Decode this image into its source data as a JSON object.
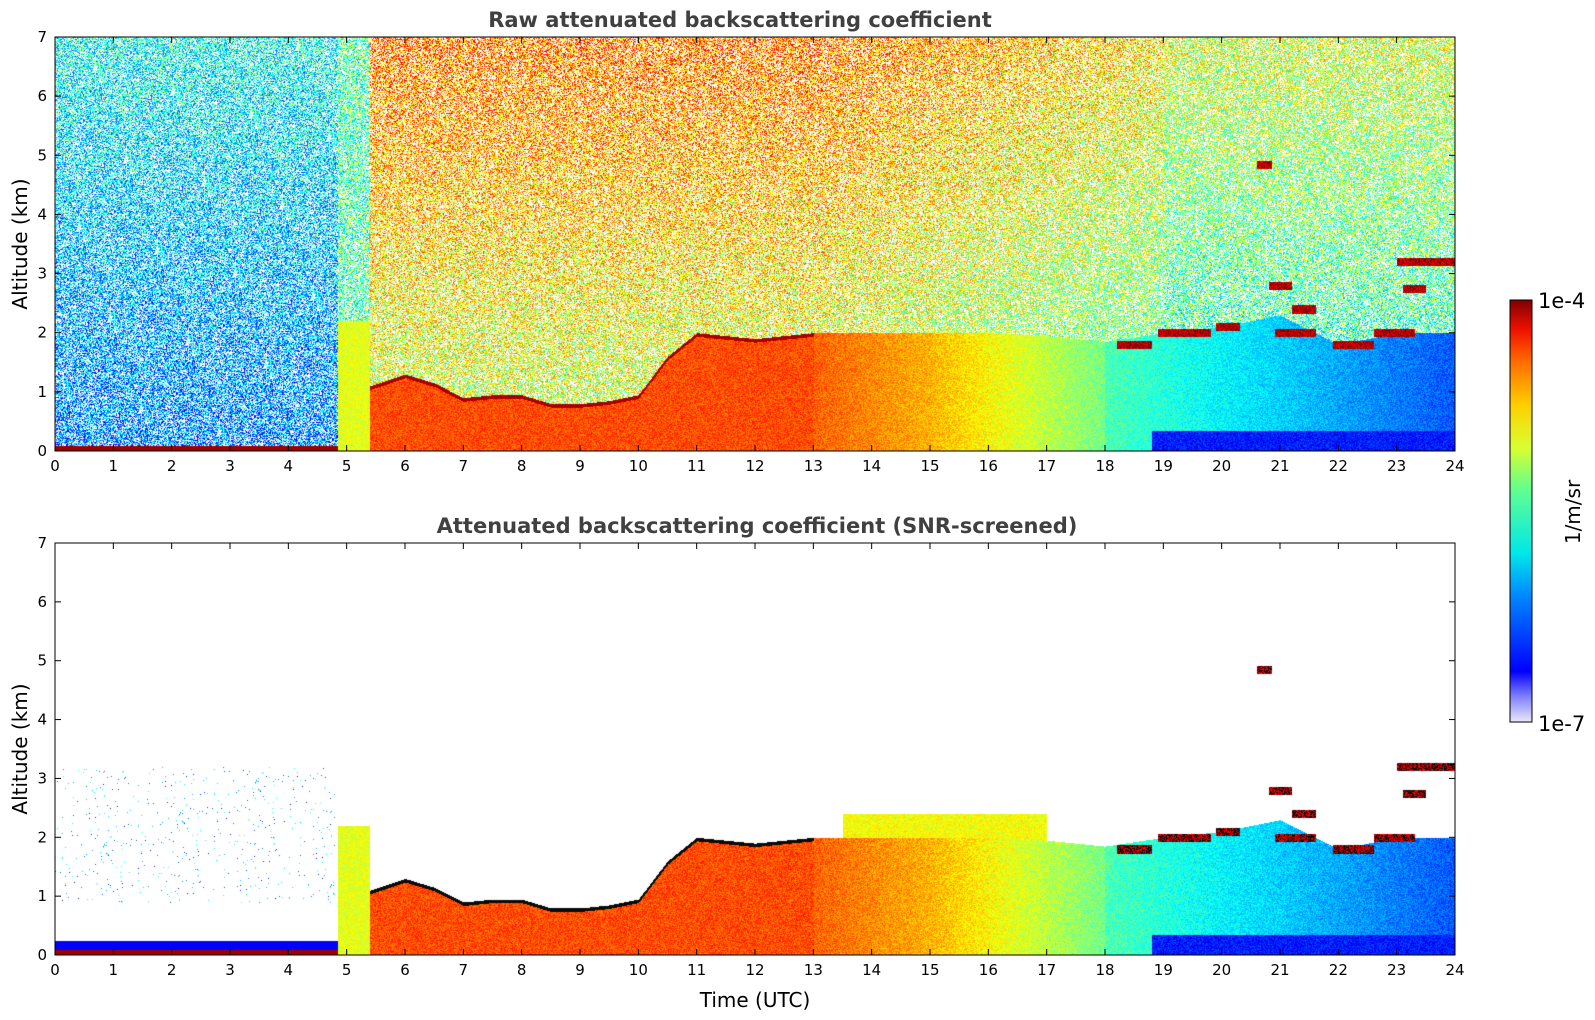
{
  "chart_data": [
    {
      "type": "heatmap",
      "title": "Raw attenuated backscattering coefficient",
      "xlabel": "",
      "ylabel": "Altitude (km)",
      "xlim": [
        0,
        24
      ],
      "ylim": [
        0,
        7
      ],
      "x_ticks": [
        "0",
        "1",
        "2",
        "3",
        "4",
        "5",
        "6",
        "7",
        "8",
        "9",
        "10",
        "11",
        "12",
        "13",
        "14",
        "15",
        "16",
        "17",
        "18",
        "19",
        "20",
        "21",
        "22",
        "23",
        "24"
      ],
      "y_ticks": [
        "0",
        "1",
        "2",
        "3",
        "4",
        "5",
        "6",
        "7"
      ],
      "screened": false
    },
    {
      "type": "heatmap",
      "title": "Attenuated backscattering coefficient (SNR-screened)",
      "xlabel": "Time (UTC)",
      "ylabel": "Altitude (km)",
      "xlim": [
        0,
        24
      ],
      "ylim": [
        0,
        7
      ],
      "x_ticks": [
        "0",
        "1",
        "2",
        "3",
        "4",
        "5",
        "6",
        "7",
        "8",
        "9",
        "10",
        "11",
        "12",
        "13",
        "14",
        "15",
        "16",
        "17",
        "18",
        "19",
        "20",
        "21",
        "22",
        "23",
        "24"
      ],
      "y_ticks": [
        "0",
        "1",
        "2",
        "3",
        "4",
        "5",
        "6",
        "7"
      ],
      "screened": true
    }
  ],
  "colorbar": {
    "label": "1/m/sr",
    "max_label": "1e-4",
    "min_label": "1e-7",
    "scale": "log",
    "colormap": "jet"
  },
  "features": {
    "boundary_layer_top_km": [
      [
        0,
        0.1
      ],
      [
        4.8,
        0.1
      ],
      [
        5.4,
        1.1
      ],
      [
        6,
        1.3
      ],
      [
        6.5,
        1.15
      ],
      [
        7,
        0.9
      ],
      [
        7.5,
        0.95
      ],
      [
        8,
        0.95
      ],
      [
        8.5,
        0.8
      ],
      [
        9,
        0.8
      ],
      [
        9.5,
        0.85
      ],
      [
        10,
        0.95
      ],
      [
        10.5,
        1.6
      ],
      [
        11,
        2.0
      ],
      [
        12,
        1.9
      ],
      [
        13,
        2.0
      ],
      [
        14,
        2.0
      ],
      [
        15,
        2.0
      ],
      [
        16,
        2.0
      ],
      [
        17,
        1.95
      ],
      [
        18,
        1.85
      ],
      [
        19,
        2.0
      ],
      [
        20,
        2.1
      ],
      [
        21,
        2.3
      ],
      [
        22,
        1.8
      ],
      [
        23,
        2.0
      ],
      [
        24,
        2.0
      ]
    ],
    "cloud_segments": [
      {
        "t0": 18.2,
        "t1": 18.8,
        "alt": 1.8
      },
      {
        "t0": 18.9,
        "t1": 19.8,
        "alt": 2.0
      },
      {
        "t0": 19.9,
        "t1": 20.3,
        "alt": 2.1
      },
      {
        "t0": 20.9,
        "t1": 21.6,
        "alt": 2.0
      },
      {
        "t0": 21.9,
        "t1": 22.6,
        "alt": 1.8
      },
      {
        "t0": 22.6,
        "t1": 23.3,
        "alt": 2.0
      },
      {
        "t0": 23.0,
        "t1": 24.0,
        "alt": 3.2
      },
      {
        "t0": 23.1,
        "t1": 23.5,
        "alt": 2.75
      },
      {
        "t0": 20.6,
        "t1": 20.85,
        "alt": 4.85
      },
      {
        "t0": 20.8,
        "t1": 21.2,
        "alt": 2.8
      },
      {
        "t0": 21.2,
        "t1": 21.6,
        "alt": 2.4
      }
    ]
  }
}
